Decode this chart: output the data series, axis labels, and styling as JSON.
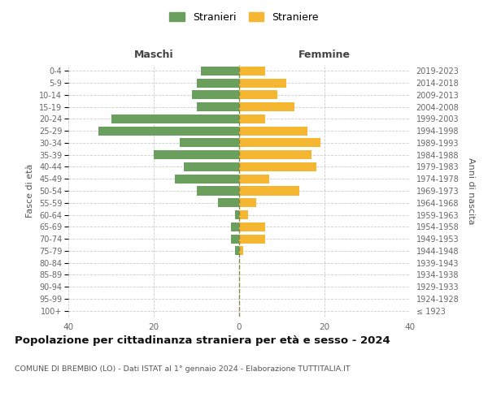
{
  "age_groups": [
    "100+",
    "95-99",
    "90-94",
    "85-89",
    "80-84",
    "75-79",
    "70-74",
    "65-69",
    "60-64",
    "55-59",
    "50-54",
    "45-49",
    "40-44",
    "35-39",
    "30-34",
    "25-29",
    "20-24",
    "15-19",
    "10-14",
    "5-9",
    "0-4"
  ],
  "birth_years": [
    "≤ 1923",
    "1924-1928",
    "1929-1933",
    "1934-1938",
    "1939-1943",
    "1944-1948",
    "1949-1953",
    "1954-1958",
    "1959-1963",
    "1964-1968",
    "1969-1973",
    "1974-1978",
    "1979-1983",
    "1984-1988",
    "1989-1993",
    "1994-1998",
    "1999-2003",
    "2004-2008",
    "2009-2013",
    "2014-2018",
    "2019-2023"
  ],
  "maschi": [
    0,
    0,
    0,
    0,
    0,
    1,
    2,
    2,
    1,
    5,
    10,
    15,
    13,
    20,
    14,
    33,
    30,
    10,
    11,
    10,
    9
  ],
  "femmine": [
    0,
    0,
    0,
    0,
    0,
    1,
    6,
    6,
    2,
    4,
    14,
    7,
    18,
    17,
    19,
    16,
    6,
    13,
    9,
    11,
    6
  ],
  "color_maschi": "#6a9f5e",
  "color_femmine": "#f5b731",
  "title": "Popolazione per cittadinanza straniera per età e sesso - 2024",
  "subtitle": "COMUNE DI BREMBIO (LO) - Dati ISTAT al 1° gennaio 2024 - Elaborazione TUTTITALIA.IT",
  "header_left": "Maschi",
  "header_right": "Femmine",
  "ylabel_left": "Fasce di età",
  "ylabel_right": "Anni di nascita",
  "legend_maschi": "Stranieri",
  "legend_femmine": "Straniere",
  "xlim": 40,
  "background_color": "#ffffff",
  "grid_color": "#cccccc",
  "center_line_color": "#888844"
}
